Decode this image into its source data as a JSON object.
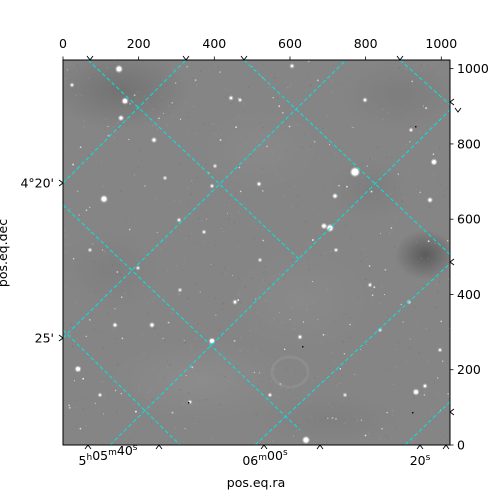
{
  "figure": {
    "background": "#ffffff",
    "image_bg": "#858585",
    "grid_color": "#00e5e5",
    "frame_color": "#000000"
  },
  "chart_data": {
    "type": "image",
    "pixel_axes": {
      "xlim": [
        0,
        1023
      ],
      "ylim": [
        0,
        1023
      ],
      "x_ticks": [
        0,
        200,
        400,
        600,
        800,
        1000
      ],
      "y_ticks": [
        0,
        200,
        400,
        600,
        800,
        1000
      ]
    },
    "world_axes": {
      "xlabel": "pos.eq.ra",
      "ylabel": "pos.eq.dec",
      "ra_ticks": [
        {
          "h": "5",
          "m": "05",
          "s": "40",
          "format": "hms"
        },
        {
          "m": "06",
          "s": "00",
          "format": "ms"
        },
        {
          "s": "20",
          "format": "s"
        }
      ],
      "dec_ticks": [
        "4°20'",
        "25'"
      ]
    },
    "grid": true
  }
}
